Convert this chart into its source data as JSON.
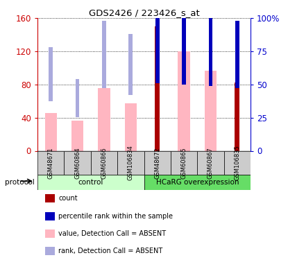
{
  "title": "GDS2426 / 223426_s_at",
  "samples": [
    "GSM48671",
    "GSM60864",
    "GSM60866",
    "GSM106834",
    "GSM48672",
    "GSM60865",
    "GSM60867",
    "GSM106835"
  ],
  "count_values": [
    null,
    null,
    null,
    null,
    150,
    null,
    null,
    82
  ],
  "percentile_rank_pct": [
    null,
    null,
    null,
    null,
    53,
    52,
    51,
    49
  ],
  "absent_value": [
    46,
    36,
    76,
    57,
    null,
    120,
    97,
    null
  ],
  "absent_rank_pct": [
    39,
    27,
    49,
    44,
    null,
    52,
    null,
    null
  ],
  "ylim_left": [
    0,
    160
  ],
  "ylim_right": [
    0,
    100
  ],
  "yticks_left": [
    0,
    40,
    80,
    120,
    160
  ],
  "yticks_right": [
    0,
    25,
    50,
    75,
    100
  ],
  "ytick_labels_left": [
    "0",
    "40",
    "80",
    "120",
    "160"
  ],
  "ytick_labels_right": [
    "0",
    "25",
    "50",
    "75",
    "100%"
  ],
  "group_labels": [
    "control",
    "HCaRG overexpression"
  ],
  "bar_width": 0.45,
  "rank_bar_width": 0.15,
  "count_bar_width": 0.18,
  "color_count": "#AA0000",
  "color_rank": "#0000BB",
  "color_absent_val": "#FFB6C1",
  "color_absent_rank": "#AAAADD",
  "color_left_axis": "#CC0000",
  "color_right_axis": "#0000CC",
  "group_light_color": "#CCFFCC",
  "group_dark_color": "#66DD66",
  "sample_cell_color": "#CCCCCC"
}
